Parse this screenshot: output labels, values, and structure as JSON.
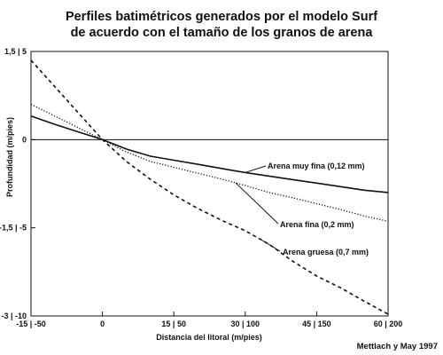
{
  "chart_data": {
    "type": "line",
    "title_line1": "Perfiles batimétricos generados por el modelo Surf",
    "title_line2": "de acuerdo con el tamaño de los granos de arena",
    "xlabel": "Distancia del litoral (m/pies)",
    "ylabel": "Profundidad (m/pies)",
    "xlim": [
      -15,
      60
    ],
    "ylim": [
      -3,
      1.5
    ],
    "x_ticks": [
      {
        "value": -15,
        "label": "-15 | -50"
      },
      {
        "value": 0,
        "label": "0"
      },
      {
        "value": 15,
        "label": "15 | 50"
      },
      {
        "value": 30,
        "label": "30 | 100"
      },
      {
        "value": 45,
        "label": "45 | 150"
      },
      {
        "value": 60,
        "label": "60 | 200"
      }
    ],
    "y_ticks": [
      {
        "value": 1.5,
        "label": "1,5 | 5"
      },
      {
        "value": 0,
        "label": "0"
      },
      {
        "value": -1.5,
        "label": "-1,5 | -5"
      },
      {
        "value": -3,
        "label": "-3 | -10"
      }
    ],
    "series": [
      {
        "name": "Arena muy fina (0,12 mm)",
        "style": "solid",
        "x": [
          -15,
          -10,
          -5,
          0,
          5,
          10,
          15,
          20,
          25,
          30,
          35,
          40,
          45,
          50,
          55,
          60
        ],
        "y": [
          0.4,
          0.26,
          0.13,
          0,
          -0.16,
          -0.28,
          -0.35,
          -0.42,
          -0.49,
          -0.56,
          -0.62,
          -0.68,
          -0.74,
          -0.8,
          -0.86,
          -0.9
        ]
      },
      {
        "name": "Arena fina (0,2 mm)",
        "style": "dotted",
        "x": [
          -15,
          -10,
          -5,
          0,
          5,
          10,
          15,
          20,
          25,
          30,
          35,
          40,
          45,
          50,
          55,
          60
        ],
        "y": [
          0.6,
          0.4,
          0.2,
          0,
          -0.21,
          -0.37,
          -0.47,
          -0.57,
          -0.67,
          -0.78,
          -0.9,
          -0.99,
          -1.09,
          -1.19,
          -1.3,
          -1.39
        ]
      },
      {
        "name": "Arena gruesa (0,7 mm)",
        "style": "dashed",
        "x": [
          -15,
          -10,
          -5,
          0,
          5,
          10,
          15,
          20,
          25,
          30,
          35,
          40,
          45,
          50,
          55,
          60
        ],
        "y": [
          1.35,
          0.9,
          0.45,
          0,
          -0.37,
          -0.67,
          -0.94,
          -1.17,
          -1.37,
          -1.55,
          -1.78,
          -2.07,
          -2.32,
          -2.52,
          -2.75,
          -2.97
        ]
      }
    ],
    "annotations": [
      {
        "text": "Arena muy fina (0,12 mm)",
        "series": 0
      },
      {
        "text": "Arena fina (0,2 mm)",
        "series": 1
      },
      {
        "text": "Arena gruesa (0,7 mm)",
        "series": 2
      }
    ],
    "grid": false,
    "zero_line": true
  },
  "credit": "Mettlach y May 1997"
}
